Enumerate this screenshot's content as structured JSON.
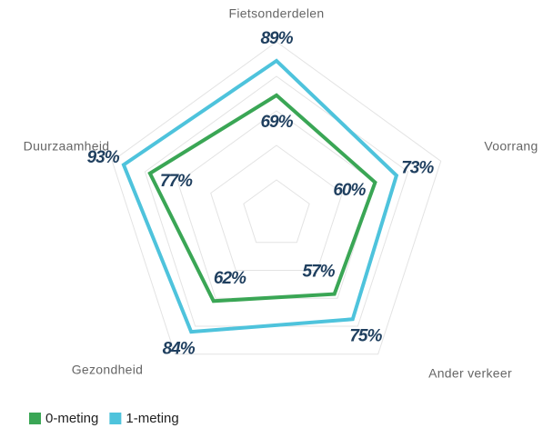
{
  "chart_data": {
    "type": "radar",
    "categories": [
      "Fietsonderdelen",
      "Voorrang",
      "Ander verkeer",
      "Gezondheid",
      "Duurzaamheid"
    ],
    "series": [
      {
        "name": "0-meting",
        "color": "#3aa655",
        "values": [
          69,
          60,
          57,
          62,
          77
        ],
        "value_labels": [
          "69%",
          "60%",
          "57%",
          "62%",
          "77%"
        ]
      },
      {
        "name": "1-meting",
        "color": "#4ec3dc",
        "values": [
          89,
          73,
          75,
          84,
          93
        ],
        "value_labels": [
          "89%",
          "73%",
          "75%",
          "84%",
          "93%"
        ]
      }
    ],
    "ylim": [
      0,
      100
    ],
    "yticks": [
      20,
      40,
      60,
      80,
      100
    ],
    "grid": true,
    "legend": "bottom-left"
  }
}
